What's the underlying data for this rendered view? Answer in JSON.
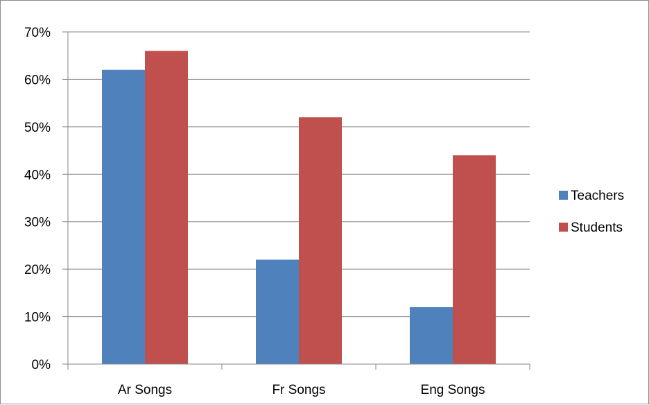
{
  "chart_data": {
    "type": "bar",
    "categories": [
      "Ar Songs",
      "Fr Songs",
      "Eng Songs"
    ],
    "series": [
      {
        "name": "Teachers",
        "values": [
          62,
          22,
          12
        ],
        "color": "#4F81BD"
      },
      {
        "name": "Students",
        "values": [
          66,
          52,
          44
        ],
        "color": "#C0504D"
      }
    ],
    "title": "",
    "xlabel": "",
    "ylabel": "",
    "ylim": [
      0,
      70
    ],
    "y_ticks": [
      "0%",
      "10%",
      "20%",
      "30%",
      "40%",
      "50%",
      "60%",
      "70%"
    ],
    "grid": true,
    "legend_position": "right"
  }
}
